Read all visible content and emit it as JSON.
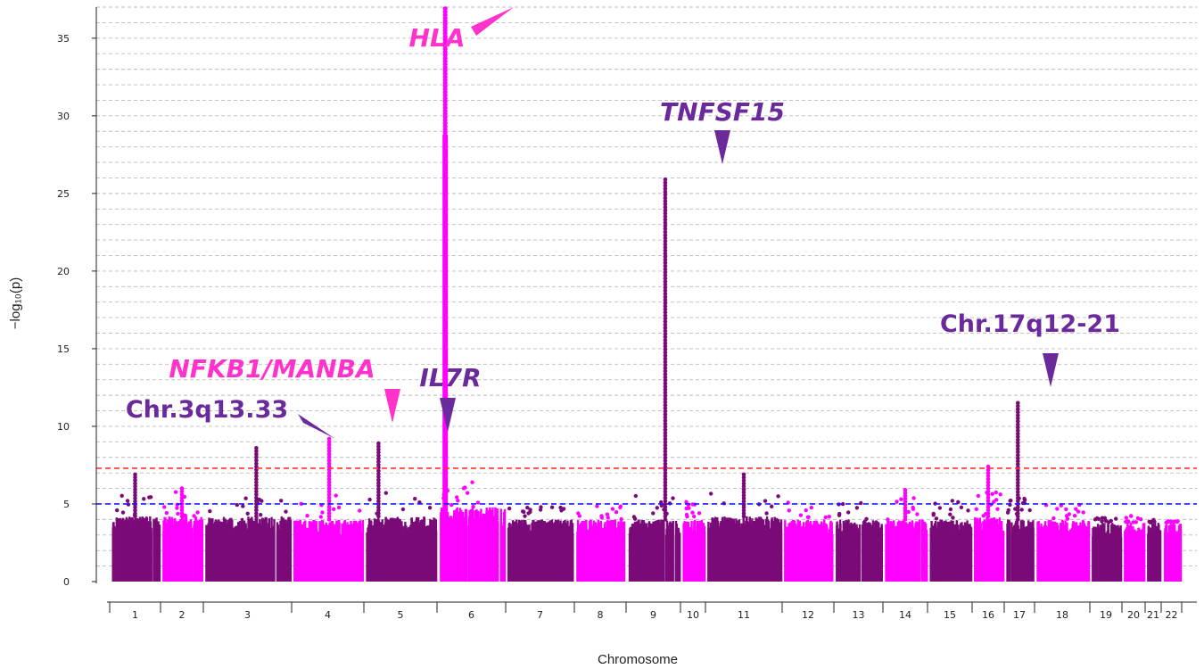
{
  "chart_data": {
    "type": "scatter",
    "subtype": "manhattan",
    "title": "",
    "xlabel": "Chromosome",
    "ylabel": "−log₁₀(p)",
    "ylim": [
      0,
      37
    ],
    "yticks": [
      0,
      5,
      10,
      15,
      20,
      25,
      30,
      35
    ],
    "grid": true,
    "colors": {
      "dark": "#7b0a79",
      "light": "#ff00ff"
    },
    "chromosomes": [
      {
        "name": "1",
        "baseline_max": 4.2,
        "peak": 6.9,
        "color": "dark"
      },
      {
        "name": "2",
        "baseline_max": 4.2,
        "peak": 6.0,
        "color": "light"
      },
      {
        "name": "3",
        "baseline_max": 4.2,
        "peak": 8.6,
        "color": "dark"
      },
      {
        "name": "4",
        "baseline_max": 4.0,
        "peak": 9.2,
        "color": "light"
      },
      {
        "name": "5",
        "baseline_max": 4.2,
        "peak": 8.9,
        "color": "dark"
      },
      {
        "name": "6",
        "baseline_max": 4.8,
        "peak": 36.9,
        "color": "light"
      },
      {
        "name": "7",
        "baseline_max": 4.0,
        "peak": 4.8,
        "color": "dark"
      },
      {
        "name": "8",
        "baseline_max": 4.0,
        "peak": 4.9,
        "color": "light"
      },
      {
        "name": "9",
        "baseline_max": 4.0,
        "peak": 25.9,
        "color": "dark"
      },
      {
        "name": "10",
        "baseline_max": 4.0,
        "peak": 5.2,
        "color": "light"
      },
      {
        "name": "11",
        "baseline_max": 4.2,
        "peak": 6.9,
        "color": "dark"
      },
      {
        "name": "12",
        "baseline_max": 4.0,
        "peak": 5.4,
        "color": "light"
      },
      {
        "name": "13",
        "baseline_max": 4.0,
        "peak": 5.1,
        "color": "dark"
      },
      {
        "name": "14",
        "baseline_max": 4.0,
        "peak": 5.9,
        "color": "light"
      },
      {
        "name": "15",
        "baseline_max": 4.0,
        "peak": 5.3,
        "color": "dark"
      },
      {
        "name": "16",
        "baseline_max": 4.2,
        "peak": 7.4,
        "color": "light"
      },
      {
        "name": "17",
        "baseline_max": 4.0,
        "peak": 11.5,
        "color": "dark"
      },
      {
        "name": "18",
        "baseline_max": 4.0,
        "peak": 5.0,
        "color": "light"
      },
      {
        "name": "19",
        "baseline_max": 3.8,
        "peak": 4.1,
        "color": "dark"
      },
      {
        "name": "20",
        "baseline_max": 3.8,
        "peak": 4.3,
        "color": "light"
      },
      {
        "name": "21",
        "baseline_max": 3.8,
        "peak": 4.0,
        "color": "dark"
      },
      {
        "name": "22",
        "baseline_max": 3.8,
        "peak": 3.9,
        "color": "light"
      }
    ],
    "thresholds": [
      {
        "y": 7.3,
        "color": "#ff3333"
      },
      {
        "y": 5.0,
        "color": "#1a1aff"
      }
    ],
    "annotations": [
      {
        "text": "HLA",
        "chromosome": "6",
        "y": 36.9,
        "color": "#ff33cc",
        "italic": true
      },
      {
        "text": "TNFSF15",
        "chromosome": "9",
        "y": 25.9,
        "color": "#6a2a9c",
        "italic": true
      },
      {
        "text": "Chr.17q12-21",
        "chromosome": "17",
        "y": 11.5,
        "color": "#6a2a9c",
        "italic": false
      },
      {
        "text": "NFKB1/MANBA",
        "chromosome": "4",
        "y": 9.2,
        "color": "#ff33cc",
        "italic": true
      },
      {
        "text": "IL7R",
        "chromosome": "5",
        "y": 8.9,
        "color": "#6a2a9c",
        "italic": true
      },
      {
        "text": "Chr.3q13.33",
        "chromosome": "3",
        "y": 8.6,
        "color": "#6a2a9c",
        "italic": false
      }
    ]
  }
}
